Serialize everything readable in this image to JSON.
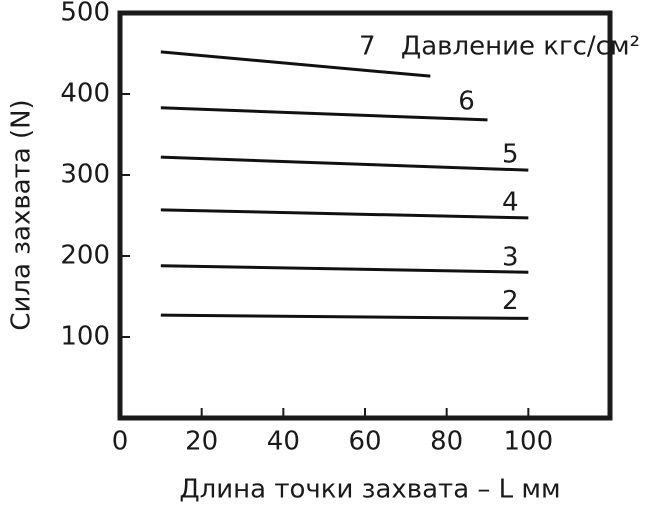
{
  "chart_data": {
    "type": "line",
    "xlabel": "Длина точки захвата – L мм",
    "ylabel": "Сила захвата (N)",
    "legend_title": "Давление кгс/см²",
    "xlim": [
      0,
      120
    ],
    "xticks": [
      0,
      20,
      40,
      60,
      80,
      100
    ],
    "ylim": [
      0,
      500
    ],
    "yticks": [
      100,
      200,
      300,
      400,
      500
    ],
    "grid": false,
    "series": [
      {
        "name": "7",
        "color": "#111111",
        "x": [
          10,
          76
        ],
        "values": [
          452,
          422
        ]
      },
      {
        "name": "6",
        "color": "#111111",
        "x": [
          10,
          90
        ],
        "values": [
          383,
          368
        ]
      },
      {
        "name": "5",
        "color": "#111111",
        "x": [
          10,
          100
        ],
        "values": [
          322,
          306
        ]
      },
      {
        "name": "4",
        "color": "#111111",
        "x": [
          10,
          100
        ],
        "values": [
          257,
          247
        ]
      },
      {
        "name": "3",
        "color": "#111111",
        "x": [
          10,
          100
        ],
        "values": [
          188,
          180
        ]
      },
      {
        "name": "2",
        "color": "#111111",
        "x": [
          10,
          100
        ],
        "values": [
          127,
          123
        ]
      }
    ]
  }
}
